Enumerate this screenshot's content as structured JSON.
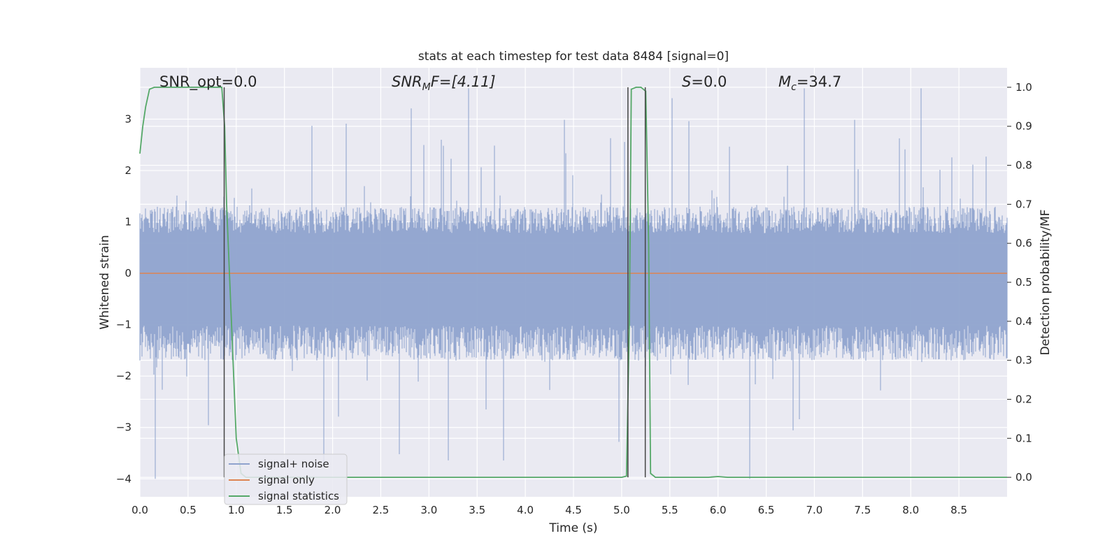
{
  "chart_data": {
    "type": "line",
    "title": "stats at each timestep for test data 8484 [signal=0]",
    "xlabel": "Time (s)",
    "ylabel_left": "Whitened strain",
    "ylabel_right": "Detection probability/MF",
    "xlim": [
      0,
      9.0
    ],
    "ylim_left": [
      -4.35,
      4.0
    ],
    "ylim_right": [
      -0.05,
      1.05
    ],
    "x_ticks": [
      "0.0",
      "0.5",
      "1.0",
      "1.5",
      "2.0",
      "2.5",
      "3.0",
      "3.5",
      "4.0",
      "4.5",
      "5.0",
      "5.5",
      "6.0",
      "6.5",
      "7.0",
      "7.5",
      "8.0",
      "8.5"
    ],
    "y_ticks_left": [
      "3",
      "2",
      "1",
      "0",
      "−1",
      "−2",
      "−3",
      "−4"
    ],
    "y_ticks_right": [
      "1.0",
      "0.9",
      "0.8",
      "0.7",
      "0.6",
      "0.5",
      "0.4",
      "0.3",
      "0.2",
      "0.1",
      "0.0"
    ],
    "grid": true,
    "legend_position": "lower-left",
    "annotations": {
      "snr_opt": "SNR_opt=0.0",
      "snr_mf_main": "SNR",
      "snr_mf_sub": "M",
      "snr_mf_rest": "F=[4.11]",
      "s_main": "S",
      "s_rest": "=0.0",
      "mc_main": "M",
      "mc_sub": "c",
      "mc_rest": "=34.7"
    },
    "series": [
      {
        "name": "signal+ noise",
        "color": "#8fa3cd",
        "kind": "noise",
        "typical_range": [
          -1.7,
          1.3
        ],
        "extreme_range": [
          -4.0,
          3.6
        ]
      },
      {
        "name": "signal only",
        "color": "#dd8452",
        "x": [
          0,
          9.0
        ],
        "y": [
          0,
          0
        ]
      },
      {
        "name": "signal statistics",
        "color": "#55a868",
        "axis": "right",
        "x": [
          0.0,
          0.03,
          0.06,
          0.1,
          0.15,
          0.2,
          0.3,
          0.5,
          0.7,
          0.85,
          0.88,
          0.9,
          0.95,
          1.0,
          1.05,
          1.1,
          1.5,
          2.0,
          3.0,
          4.0,
          4.5,
          5.0,
          5.05,
          5.08,
          5.1,
          5.15,
          5.2,
          5.25,
          5.28,
          5.3,
          5.35,
          5.4,
          5.5,
          5.9,
          6.0,
          6.1,
          6.5,
          7.0,
          8.0,
          9.0
        ],
        "y": [
          0.83,
          0.9,
          0.95,
          0.995,
          1.0,
          1.0,
          1.0,
          1.0,
          1.0,
          1.0,
          0.9,
          0.7,
          0.4,
          0.1,
          0.01,
          0.0,
          0.0,
          0.0,
          0.0,
          0.0,
          0.0,
          0.0,
          0.003,
          0.4,
          0.995,
          1.0,
          1.0,
          0.99,
          0.6,
          0.01,
          0.0,
          0.0,
          0.0,
          0.0,
          0.002,
          0.0,
          0.0,
          0.0,
          0.0,
          0.0
        ]
      }
    ],
    "vertical_markers": [
      {
        "x": 0.875,
        "color": "#444444"
      },
      {
        "x": 5.065,
        "color": "#444444"
      },
      {
        "x": 5.245,
        "color": "#444444"
      }
    ],
    "bg_color": "#eaeaf2",
    "grid_color": "#ffffff"
  }
}
